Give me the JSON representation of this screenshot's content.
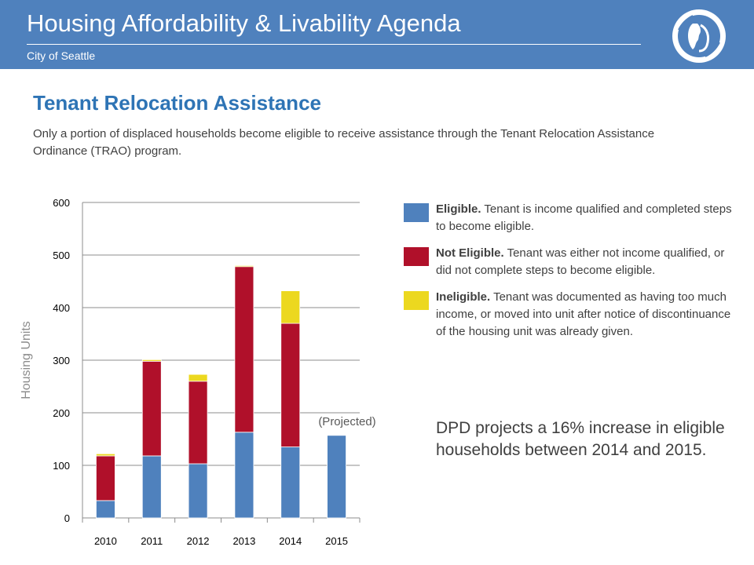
{
  "header": {
    "title": "Housing Affordability & Livability Agenda",
    "subtitle": "City of Seattle",
    "logo_icon": "seattle-seal-icon"
  },
  "slide": {
    "title": "Tenant Relocation Assistance",
    "intro": "Only a portion of displaced households become eligible to receive assistance through the Tenant Relocation Assistance Ordinance (TRAO) program."
  },
  "legend": {
    "items": [
      {
        "name": "Eligible.",
        "desc": " Tenant is income qualified and completed steps to become eligible.",
        "color": "#4f81bd"
      },
      {
        "name": "Not Eligible.",
        "desc": " Tenant was either not income qualified, or did not complete steps to become eligible.",
        "color": "#b0102a"
      },
      {
        "name": "Ineligible.",
        "desc": " Tenant was documented as having too much income, or moved into unit after notice of discontinuance of the housing unit was already given.",
        "color": "#ecd81f"
      }
    ]
  },
  "note": "DPD projects a 16% increase in eligible households between 2014 and 2015.",
  "chart_data": {
    "type": "bar",
    "stacked": true,
    "categories": [
      "2010",
      "2011",
      "2012",
      "2013",
      "2014",
      "2015"
    ],
    "series": [
      {
        "name": "Eligible",
        "color": "#4f81bd",
        "values": [
          33,
          118,
          103,
          163,
          135,
          157
        ]
      },
      {
        "name": "Not Eligible",
        "color": "#b0102a",
        "values": [
          85,
          180,
          157,
          315,
          235,
          0
        ]
      },
      {
        "name": "Ineligible",
        "color": "#ecd81f",
        "values": [
          4,
          3,
          13,
          2,
          62,
          0
        ]
      }
    ],
    "ylabel": "Housing Units",
    "ylim": [
      0,
      600
    ],
    "yticks": [
      0,
      100,
      200,
      300,
      400,
      500,
      600
    ],
    "grid": true,
    "annotation": "(Projected)"
  }
}
